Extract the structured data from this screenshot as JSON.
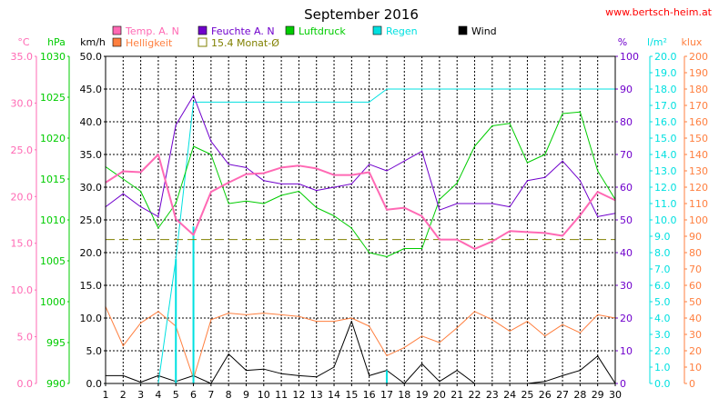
{
  "chart_data": {
    "type": "line",
    "title": "September 2016",
    "watermark": "www.bertsch-heim.at",
    "x": [
      1,
      2,
      3,
      4,
      5,
      6,
      7,
      8,
      9,
      10,
      11,
      12,
      13,
      14,
      15,
      16,
      17,
      18,
      19,
      20,
      21,
      22,
      23,
      24,
      25,
      26,
      27,
      28,
      29,
      30
    ],
    "xlim": [
      1,
      30
    ],
    "grid": true,
    "legend_position": "top",
    "legend": [
      {
        "label": "Temp. A. N",
        "color": "#ff69b4"
      },
      {
        "label": "Feuchte A. N",
        "color": "#7000cc"
      },
      {
        "label": "Luftdruck",
        "color": "#00cc00"
      },
      {
        "label": "Regen",
        "color": "#00e0e0"
      },
      {
        "label": "Wind",
        "color": "#000000"
      },
      {
        "label": "Helligkeit",
        "color": "#ff7f3f"
      },
      {
        "label": "15.4 Monat-Ø",
        "color": "#808000",
        "style": "dashed",
        "box": "outline"
      }
    ],
    "axes": [
      {
        "id": "temp",
        "unit": "°C",
        "side": "left",
        "color": "#ff69b4",
        "min": 0,
        "max": 35,
        "step": 5,
        "decimals": 1
      },
      {
        "id": "pres",
        "unit": "hPa",
        "side": "left",
        "color": "#00cc00",
        "min": 990,
        "max": 1030,
        "step": 5,
        "decimals": 0
      },
      {
        "id": "wind",
        "unit": "km/h",
        "side": "left",
        "color": "#000000",
        "min": 0,
        "max": 50,
        "step": 5,
        "decimals": 1
      },
      {
        "id": "hum",
        "unit": "%",
        "side": "right",
        "color": "#7000cc",
        "min": 0,
        "max": 100,
        "step": 10,
        "decimals": 0
      },
      {
        "id": "rain",
        "unit": "l/m²",
        "side": "right",
        "color": "#00e0e0",
        "min": 0,
        "max": 20,
        "step": 1,
        "decimals": 1
      },
      {
        "id": "lux",
        "unit": "klux",
        "side": "right",
        "color": "#ff7f3f",
        "min": 0,
        "max": 200,
        "step": 10,
        "decimals": 0
      }
    ],
    "series": [
      {
        "name": "Temp. A. N",
        "axis": "temp",
        "color": "#ff69b4",
        "width": 2,
        "values": [
          21.5,
          22.7,
          22.6,
          24.5,
          17.6,
          15.9,
          20.5,
          21.5,
          22.4,
          22.5,
          23.1,
          23.3,
          23.0,
          22.3,
          22.3,
          22.6,
          18.6,
          18.8,
          17.9,
          15.4,
          15.4,
          14.4,
          15.2,
          16.3,
          16.2,
          16.1,
          15.8,
          18.0,
          20.5,
          19.6
        ]
      },
      {
        "name": "Feuchte A. N",
        "axis": "hum",
        "color": "#7000cc",
        "width": 1,
        "values": [
          54,
          58,
          54,
          51,
          79,
          88,
          74,
          67,
          66,
          62,
          61,
          61,
          59,
          60,
          61,
          67,
          65,
          68,
          71,
          53,
          55,
          55,
          55,
          54,
          62,
          63,
          68,
          62,
          51,
          52
        ]
      },
      {
        "name": "Luftdruck",
        "axis": "pres",
        "color": "#00cc00",
        "width": 1,
        "values": [
          1016.5,
          1015.0,
          1013.5,
          1009.0,
          1012.0,
          1019.0,
          1018.0,
          1012.0,
          1012.3,
          1012.0,
          1013.0,
          1013.5,
          1011.5,
          1010.5,
          1009.0,
          1006.0,
          1005.5,
          1006.5,
          1006.5,
          1012.5,
          1014.5,
          1019.0,
          1021.5,
          1021.8,
          1017.0,
          1018.0,
          1023.0,
          1023.2,
          1016.0,
          1012.5
        ]
      },
      {
        "name": "Regen",
        "axis": "rain",
        "color": "#00e0e0",
        "width": 1,
        "values": [
          0,
          0,
          0,
          0,
          7.6,
          17.2,
          17.2,
          17.2,
          17.2,
          17.2,
          17.2,
          17.2,
          17.2,
          17.2,
          17.2,
          17.2,
          18.0,
          18.0,
          18.0,
          18.0,
          18.0,
          18.0,
          18.0,
          18.0,
          18.0,
          18.0,
          18.0,
          18.0,
          18.0,
          18.0
        ],
        "bars": [
          0,
          0,
          0,
          0,
          7.6,
          9.6,
          0,
          0,
          0,
          0,
          0,
          0,
          0,
          0,
          0,
          0,
          0.8,
          0,
          0,
          0,
          0,
          0,
          0,
          0,
          0,
          0,
          0,
          0,
          0,
          0
        ]
      },
      {
        "name": "Wind",
        "axis": "wind",
        "color": "#000000",
        "width": 1,
        "values": [
          1.2,
          1.2,
          0.2,
          1.2,
          0.3,
          1.2,
          0,
          4.5,
          2.0,
          2.2,
          1.5,
          1.2,
          1.0,
          2.5,
          9.5,
          1.2,
          2.0,
          0,
          3.0,
          0.3,
          2.0,
          0,
          0,
          0,
          0,
          0.3,
          1.2,
          2.0,
          4.2,
          0
        ]
      },
      {
        "name": "Helligkeit",
        "axis": "lux",
        "color": "#ff7f3f",
        "width": 1,
        "values": [
          47,
          23,
          37,
          44,
          35,
          3,
          39,
          43,
          42,
          43,
          42,
          41,
          38,
          38,
          40,
          35,
          17,
          22,
          29,
          25,
          34,
          44,
          39,
          32,
          38,
          29,
          36,
          31,
          42,
          40
        ]
      },
      {
        "name": "15.4 Monat-Ø",
        "axis": "temp",
        "color": "#808000",
        "width": 1,
        "dashed": true,
        "constant": 15.4
      }
    ]
  }
}
